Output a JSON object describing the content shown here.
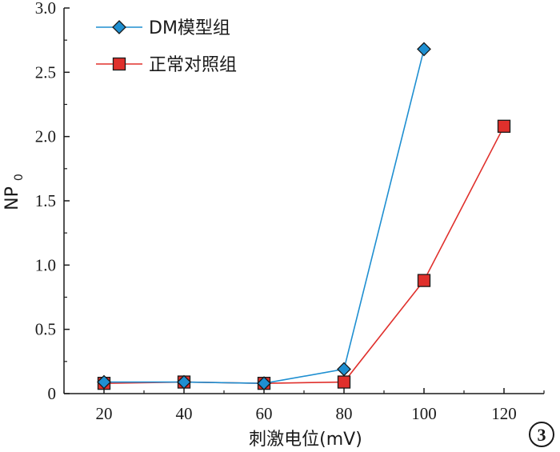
{
  "chart_data": {
    "type": "line",
    "xlabel": "刺激电位(mV)",
    "ylabel_main": "NP",
    "ylabel_sub": "0",
    "x": [
      20,
      40,
      60,
      80,
      100,
      120
    ],
    "xlim": [
      10,
      130
    ],
    "ylim": [
      0,
      3.0
    ],
    "x_ticks": [
      "20",
      "40",
      "60",
      "80",
      "100",
      "120"
    ],
    "y_ticks": [
      "0",
      "0.5",
      "1.0",
      "1.5",
      "2.0",
      "2.5",
      "3.0"
    ],
    "grid": false,
    "legend_position": "top-left",
    "series": [
      {
        "name": "DM模型组",
        "marker": "diamond",
        "color": "#1e8fd1",
        "values": [
          0.09,
          0.09,
          0.08,
          0.19,
          2.68,
          null
        ]
      },
      {
        "name": "正常对照组",
        "marker": "square",
        "color": "#e0302c",
        "values": [
          0.08,
          0.09,
          0.08,
          0.09,
          0.88,
          2.08
        ]
      }
    ]
  },
  "panel_badge": "3"
}
